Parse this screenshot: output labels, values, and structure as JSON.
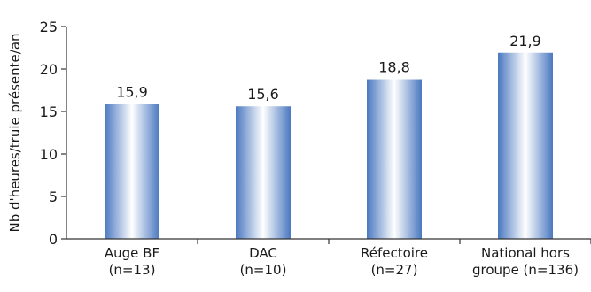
{
  "chart_data": {
    "type": "bar",
    "categories": [
      [
        "Auge BF",
        "(n=13)"
      ],
      [
        "DAC",
        "(n=10)"
      ],
      [
        "Réfectoire",
        "(n=27)"
      ],
      [
        "National hors",
        "groupe (n=136)"
      ]
    ],
    "values": [
      15.9,
      15.6,
      18.8,
      21.9
    ],
    "data_labels": [
      "15,9",
      "15,6",
      "18,8",
      "21,9"
    ],
    "ylabel": "Nb d'heures/truie présente/an",
    "ylim": [
      0,
      25
    ],
    "yticks": [
      0,
      5,
      10,
      15,
      20,
      25
    ],
    "grid": false,
    "legend": "none",
    "colors": {
      "bar_dark": "#4a78c0",
      "bar_light": "#ffffff",
      "axis": "#333333"
    }
  }
}
